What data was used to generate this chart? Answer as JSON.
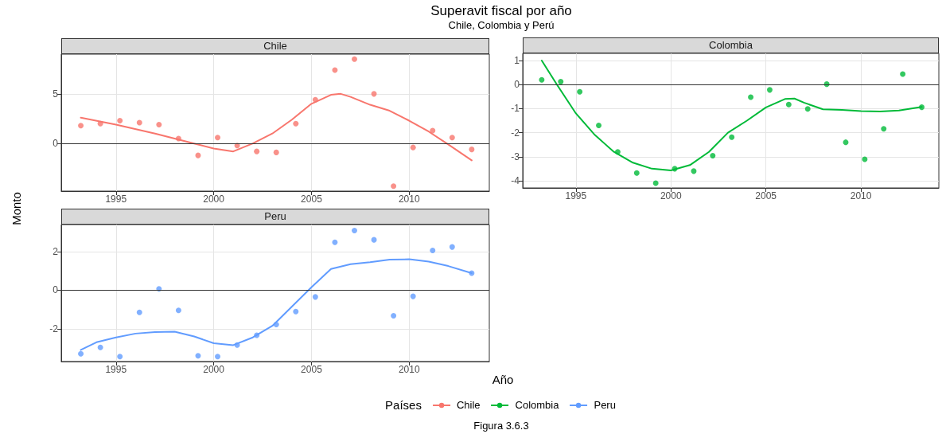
{
  "chart_data": [
    {
      "type": "scatter",
      "title": "Superavit fiscal por año",
      "subtitle": "Chile, Colombia y Perú",
      "ylabel": "Monto",
      "legend_title": "Países",
      "legend": "bottom",
      "annotations": [
        "Figura 3.6.3"
      ],
      "grid": true,
      "xlim": [
        1992.2,
        2014.1
      ],
      "xticks": [
        1995,
        2000,
        2005,
        2010
      ],
      "ylim": [
        -4.8,
        9.0
      ],
      "yticks": [
        0,
        5
      ],
      "ref_lines": [
        {
          "axis": "y",
          "value": 0,
          "color": "#333333"
        }
      ],
      "series": [
        {
          "name": "Chile",
          "type": "line",
          "color": "#f8766d",
          "x": [
            1993.2,
            1995,
            1997,
            1999,
            2000,
            2001,
            2002,
            2003,
            2004,
            2005,
            2006,
            2006.5,
            2007,
            2008,
            2009,
            2010,
            2011,
            2012,
            2013.2
          ],
          "values": [
            2.6,
            1.9,
            1.0,
            0.0,
            -0.5,
            -0.8,
            0.0,
            1.0,
            2.4,
            4.0,
            4.9,
            5.0,
            4.7,
            3.9,
            3.3,
            2.3,
            1.2,
            -0.1,
            -1.7
          ]
        },
        {
          "color": "#f8766d",
          "x": [
            1993.2,
            1994.2,
            1995.2,
            1996.2,
            1997.2,
            1998.2,
            1999.2,
            2000.2,
            2001.2,
            2002.2,
            2003.2,
            2004.2,
            2005.2,
            2006.2,
            2007.2,
            2008.2,
            2009.2,
            2010.2,
            2011.2,
            2012.2,
            2013.2
          ],
          "values": [
            1.8,
            2.0,
            2.3,
            2.1,
            1.9,
            0.5,
            -1.2,
            0.6,
            -0.2,
            -0.8,
            -0.9,
            2.0,
            4.4,
            7.4,
            8.5,
            5.0,
            -4.3,
            -0.4,
            1.3,
            0.6,
            -0.6
          ]
        }
      ]
    },
    {
      "type": "scatter",
      "grid": true,
      "xlim": [
        1992.2,
        2014.1
      ],
      "xticks": [
        1995,
        2000,
        2005,
        2010
      ],
      "ylim": [
        -4.3,
        1.3
      ],
      "yticks": [
        -4,
        -3,
        -2,
        -1,
        0,
        1
      ],
      "ref_lines": [
        {
          "axis": "y",
          "value": 0,
          "color": "#333333"
        }
      ],
      "series": [
        {
          "name": "Colombia",
          "type": "line",
          "color": "#00ba38",
          "x": [
            1993.2,
            1994,
            1995,
            1996,
            1997,
            1998,
            1999,
            2000,
            2001,
            2002,
            2003,
            2004,
            2005,
            2006,
            2006.5,
            2007,
            2008,
            2009,
            2010,
            2011,
            2012,
            2013.2
          ],
          "values": [
            1.0,
            0.0,
            -1.2,
            -2.1,
            -2.8,
            -3.25,
            -3.5,
            -3.57,
            -3.35,
            -2.8,
            -2.0,
            -1.5,
            -0.95,
            -0.6,
            -0.58,
            -0.75,
            -1.03,
            -1.05,
            -1.1,
            -1.12,
            -1.08,
            -0.93
          ]
        },
        {
          "color": "#00ba38",
          "x": [
            1993.2,
            1994.2,
            1995.2,
            1996.2,
            1997.2,
            1998.2,
            1999.2,
            2000.2,
            2001.2,
            2002.2,
            2003.2,
            2004.2,
            2005.2,
            2006.2,
            2007.2,
            2008.2,
            2009.2,
            2010.2,
            2011.2,
            2012.2,
            2013.2
          ],
          "values": [
            0.2,
            0.12,
            -0.3,
            -1.7,
            -2.8,
            -3.68,
            -4.1,
            -3.5,
            -3.6,
            -2.96,
            -2.19,
            -0.52,
            -0.22,
            -0.83,
            -1.01,
            0.02,
            -2.4,
            -3.11,
            -1.84,
            0.44,
            -0.94
          ]
        }
      ]
    },
    {
      "type": "scatter",
      "xlabel": "Año",
      "grid": true,
      "xlim": [
        1992.2,
        2014.1
      ],
      "xticks": [
        1995,
        2000,
        2005,
        2010
      ],
      "ylim": [
        -3.7,
        3.4
      ],
      "yticks": [
        -2,
        0,
        2
      ],
      "ref_lines": [
        {
          "axis": "y",
          "value": 0,
          "color": "#333333"
        }
      ],
      "series": [
        {
          "name": "Peru",
          "type": "line",
          "color": "#619cff",
          "x": [
            1993.2,
            1994,
            1995,
            1996,
            1997,
            1998,
            1999,
            2000,
            2001,
            2002,
            2003,
            2004,
            2005,
            2006,
            2007,
            2008,
            2009,
            2010,
            2011,
            2012,
            2013.2
          ],
          "values": [
            -3.1,
            -2.7,
            -2.45,
            -2.25,
            -2.17,
            -2.15,
            -2.4,
            -2.75,
            -2.85,
            -2.45,
            -1.85,
            -0.85,
            0.15,
            1.1,
            1.35,
            1.45,
            1.58,
            1.6,
            1.48,
            1.25,
            0.88
          ]
        },
        {
          "color": "#619cff",
          "x": [
            1993.2,
            1994.2,
            1995.2,
            1996.2,
            1997.2,
            1998.2,
            1999.2,
            2000.2,
            2001.2,
            2002.2,
            2003.2,
            2004.2,
            2005.2,
            2006.2,
            2007.2,
            2008.2,
            2009.2,
            2010.2,
            2011.2,
            2012.2,
            2013.2
          ],
          "values": [
            -3.3,
            -2.97,
            -3.44,
            -1.15,
            0.07,
            -1.05,
            -3.4,
            -3.44,
            -2.84,
            -2.34,
            -1.78,
            -1.11,
            -0.35,
            2.48,
            3.09,
            2.61,
            -1.33,
            -0.32,
            2.06,
            2.24,
            0.88
          ]
        }
      ]
    }
  ]
}
